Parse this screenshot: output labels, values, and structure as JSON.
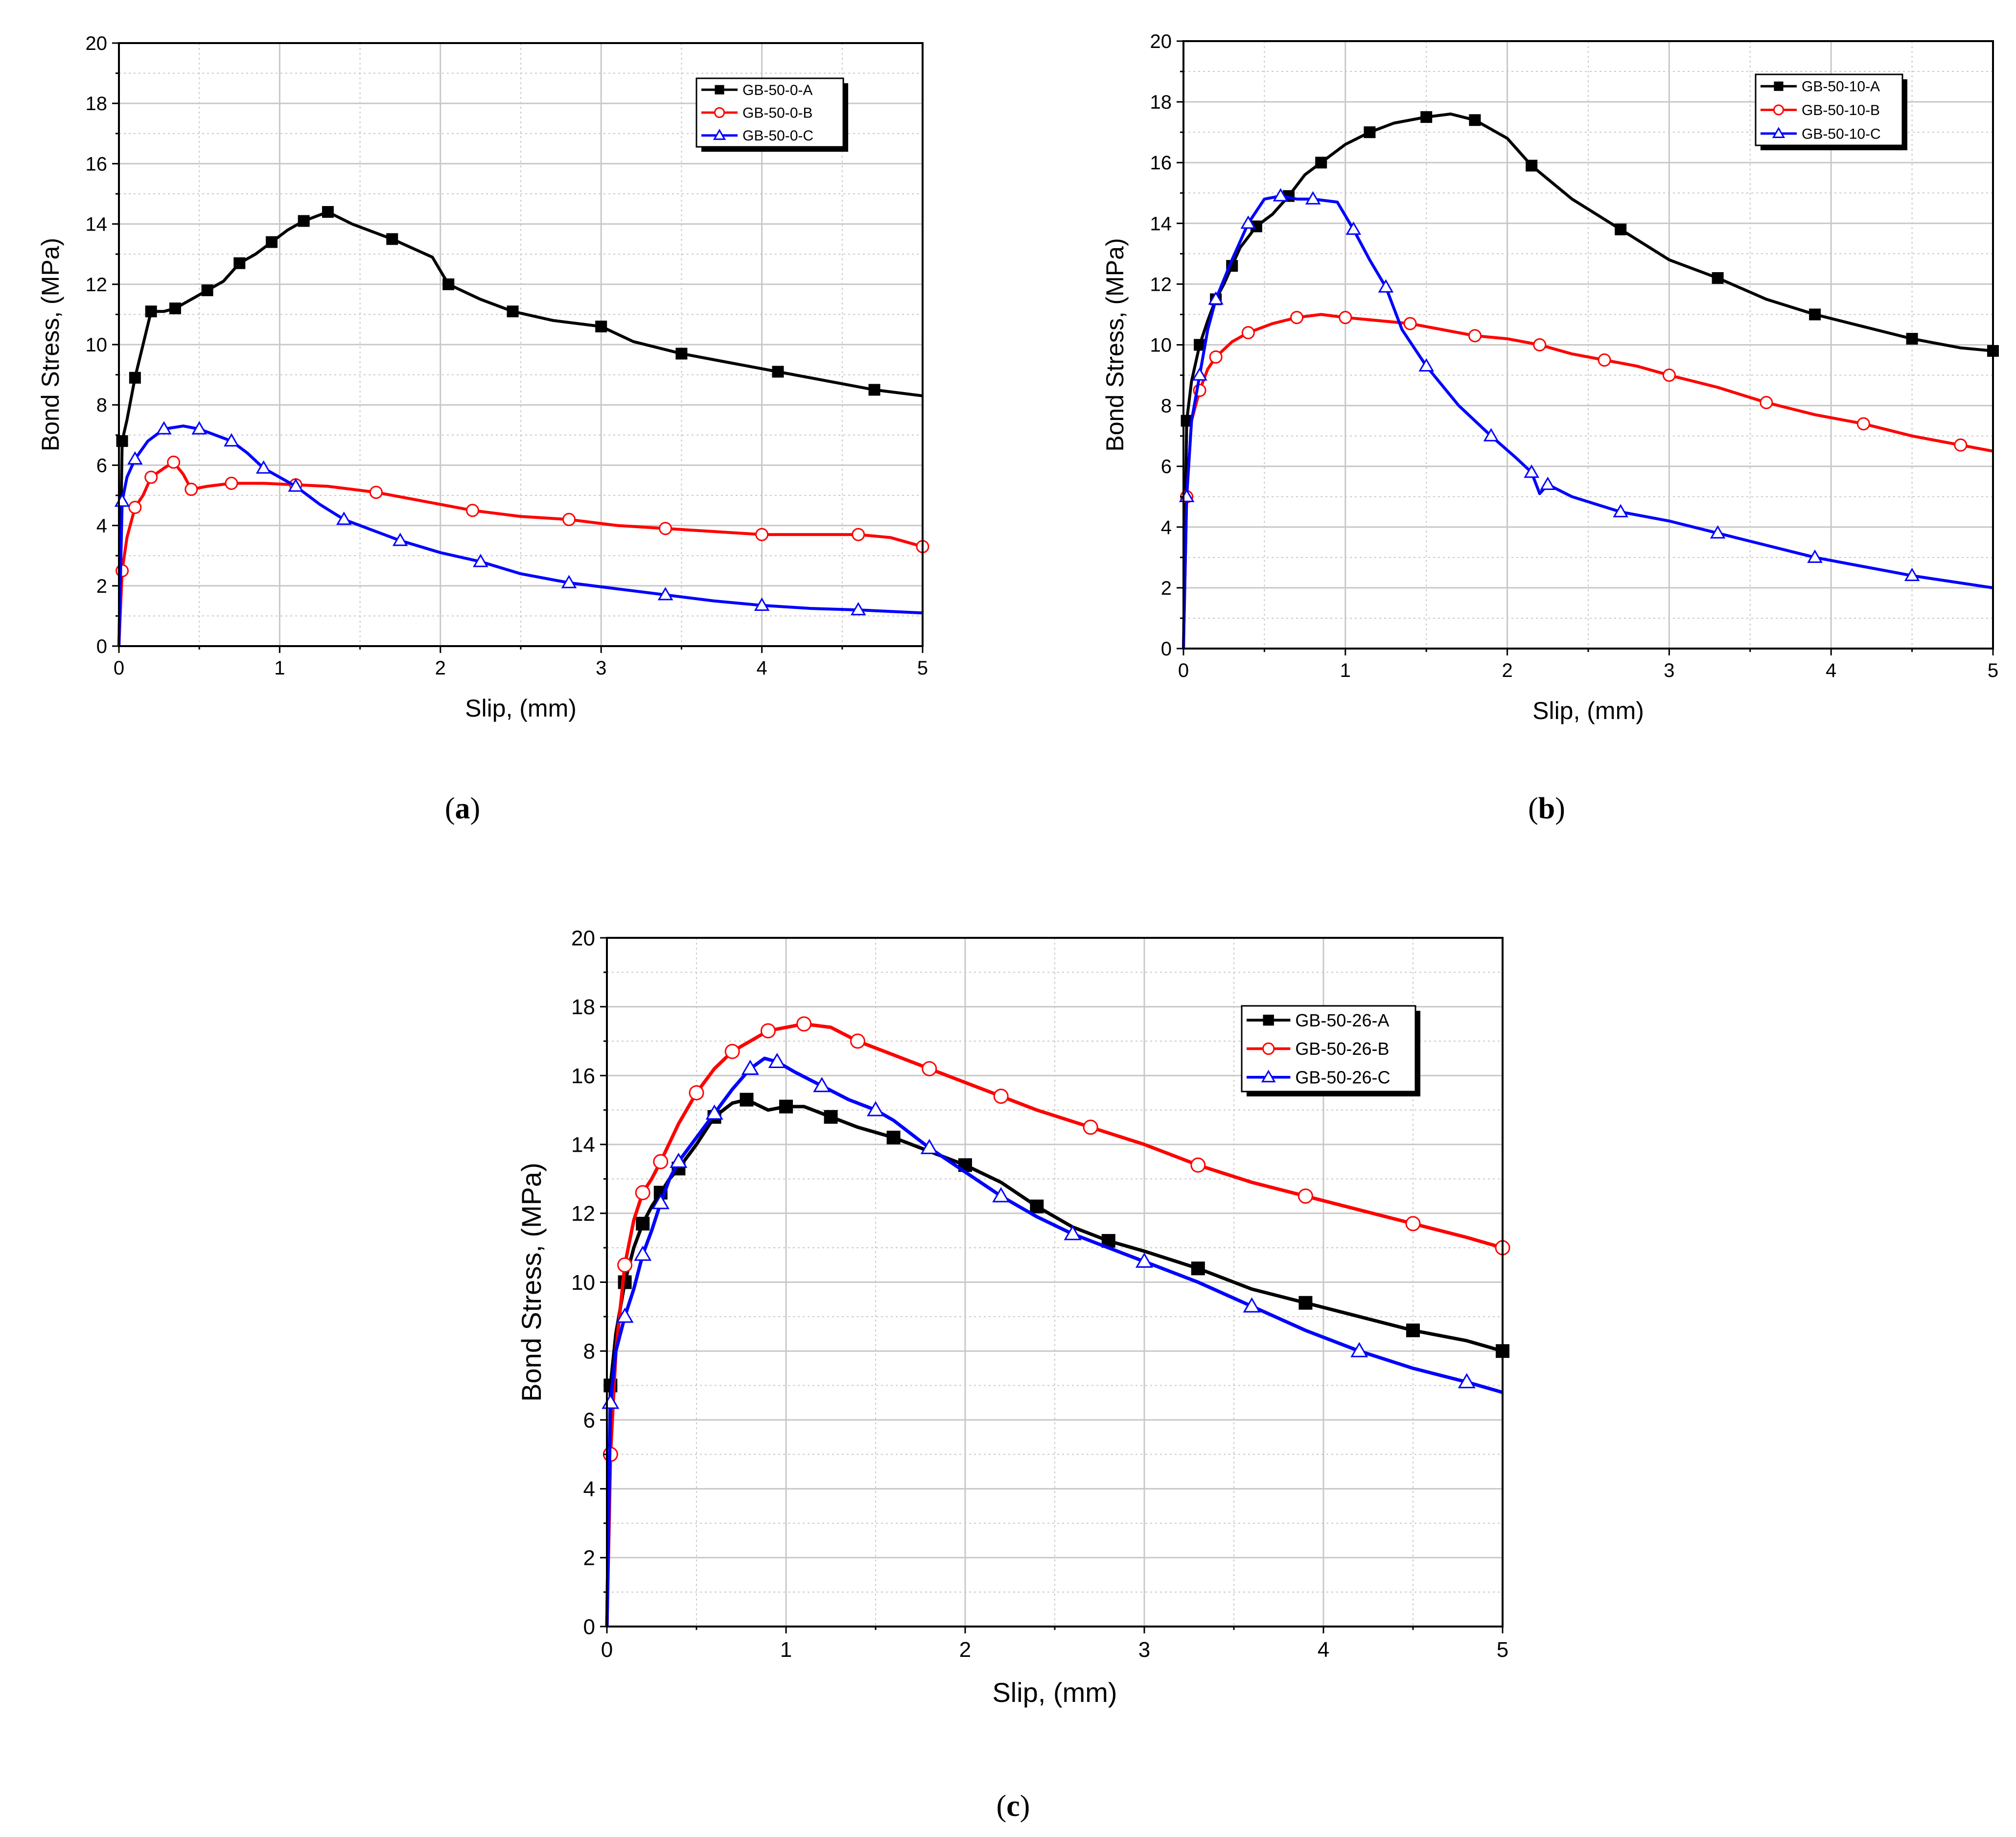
{
  "figure": {
    "panel_labels": [
      [
        "(",
        "a",
        ")"
      ],
      [
        "(",
        "b",
        ")"
      ],
      [
        "(",
        "c",
        ")"
      ]
    ]
  },
  "colors": {
    "series_a": "#000000",
    "series_b": "#ff0000",
    "series_c": "#0000ff",
    "grid": "#c8c8c8",
    "frame": "#000000"
  },
  "chart_data": [
    {
      "type": "line",
      "panel": "a",
      "title": "",
      "xlabel": "Slip, (mm)",
      "ylabel": "Bond Stress, (MPa)",
      "xlim": [
        0,
        5
      ],
      "ylim": [
        0,
        20
      ],
      "xticks": [
        0,
        1,
        2,
        3,
        4,
        5
      ],
      "yticks": [
        0,
        2,
        4,
        6,
        8,
        10,
        12,
        14,
        16,
        18,
        20
      ],
      "grid": true,
      "legend_position": "top-right",
      "series": [
        {
          "name": "GB-50-0-A",
          "marker": "square-filled",
          "color": "#000000",
          "x": [
            0,
            0.02,
            0.05,
            0.1,
            0.15,
            0.2,
            0.28,
            0.35,
            0.45,
            0.55,
            0.65,
            0.75,
            0.85,
            0.95,
            1.05,
            1.15,
            1.25,
            1.3,
            1.45,
            1.7,
            1.95,
            2.05,
            2.25,
            2.45,
            2.7,
            3.0,
            3.2,
            3.5,
            3.8,
            4.1,
            4.4,
            4.7,
            5.0
          ],
          "y": [
            0,
            6.8,
            7.5,
            8.9,
            10.0,
            11.1,
            11.1,
            11.2,
            11.5,
            11.8,
            12.1,
            12.7,
            13.0,
            13.4,
            13.8,
            14.1,
            14.3,
            14.4,
            14.0,
            13.5,
            12.9,
            12.0,
            11.5,
            11.1,
            10.8,
            10.6,
            10.1,
            9.7,
            9.4,
            9.1,
            8.8,
            8.5,
            8.3
          ]
        },
        {
          "name": "GB-50-0-B",
          "marker": "circle-open",
          "color": "#ff0000",
          "x": [
            0,
            0.02,
            0.05,
            0.1,
            0.15,
            0.2,
            0.28,
            0.34,
            0.4,
            0.45,
            0.55,
            0.7,
            0.9,
            1.1,
            1.3,
            1.6,
            1.9,
            2.2,
            2.5,
            2.8,
            3.1,
            3.4,
            3.7,
            4.0,
            4.3,
            4.6,
            4.8,
            5.0
          ],
          "y": [
            0,
            2.5,
            3.6,
            4.6,
            5.0,
            5.6,
            5.9,
            6.1,
            5.7,
            5.2,
            5.3,
            5.4,
            5.4,
            5.35,
            5.3,
            5.1,
            4.8,
            4.5,
            4.3,
            4.2,
            4.0,
            3.9,
            3.8,
            3.7,
            3.7,
            3.7,
            3.6,
            3.3
          ]
        },
        {
          "name": "GB-50-0-C",
          "marker": "triangle-open",
          "color": "#0000ff",
          "x": [
            0,
            0.02,
            0.05,
            0.1,
            0.18,
            0.28,
            0.4,
            0.5,
            0.6,
            0.7,
            0.8,
            0.9,
            1.0,
            1.1,
            1.25,
            1.4,
            1.55,
            1.75,
            2.0,
            2.25,
            2.5,
            2.8,
            3.1,
            3.4,
            3.7,
            4.0,
            4.3,
            4.6,
            5.0
          ],
          "y": [
            0,
            4.8,
            5.6,
            6.2,
            6.8,
            7.2,
            7.3,
            7.2,
            7.0,
            6.8,
            6.4,
            5.9,
            5.6,
            5.3,
            4.7,
            4.2,
            3.9,
            3.5,
            3.1,
            2.8,
            2.4,
            2.1,
            1.9,
            1.7,
            1.5,
            1.35,
            1.25,
            1.2,
            1.1
          ]
        }
      ]
    },
    {
      "type": "line",
      "panel": "b",
      "title": "",
      "xlabel": "Slip, (mm)",
      "ylabel": "Bond Stress, (MPa)",
      "xlim": [
        0,
        5
      ],
      "ylim": [
        0,
        20
      ],
      "xticks": [
        0,
        1,
        2,
        3,
        4,
        5
      ],
      "yticks": [
        0,
        2,
        4,
        6,
        8,
        10,
        12,
        14,
        16,
        18,
        20
      ],
      "grid": true,
      "legend_position": "top-right",
      "series": [
        {
          "name": "GB-50-10-A",
          "marker": "square-filled",
          "color": "#000000",
          "x": [
            0,
            0.02,
            0.05,
            0.1,
            0.15,
            0.2,
            0.25,
            0.3,
            0.35,
            0.45,
            0.55,
            0.65,
            0.75,
            0.85,
            1.0,
            1.15,
            1.3,
            1.5,
            1.65,
            1.8,
            2.0,
            2.15,
            2.4,
            2.7,
            3.0,
            3.3,
            3.6,
            3.9,
            4.2,
            4.5,
            4.8,
            5.0
          ],
          "y": [
            0,
            7.5,
            8.8,
            10.0,
            10.8,
            11.5,
            12.0,
            12.6,
            13.2,
            13.9,
            14.3,
            14.9,
            15.6,
            16.0,
            16.6,
            17.0,
            17.3,
            17.5,
            17.6,
            17.4,
            16.8,
            15.9,
            14.8,
            13.8,
            12.8,
            12.2,
            11.5,
            11.0,
            10.6,
            10.2,
            9.9,
            9.8
          ]
        },
        {
          "name": "GB-50-10-B",
          "marker": "circle-open",
          "color": "#ff0000",
          "x": [
            0,
            0.02,
            0.05,
            0.1,
            0.15,
            0.2,
            0.3,
            0.4,
            0.55,
            0.7,
            0.85,
            1.0,
            1.2,
            1.4,
            1.6,
            1.8,
            2.0,
            2.2,
            2.4,
            2.6,
            2.8,
            3.0,
            3.3,
            3.6,
            3.9,
            4.2,
            4.5,
            4.8,
            5.0
          ],
          "y": [
            0,
            5.0,
            7.5,
            8.5,
            9.2,
            9.6,
            10.1,
            10.4,
            10.7,
            10.9,
            11.0,
            10.9,
            10.8,
            10.7,
            10.5,
            10.3,
            10.2,
            10.0,
            9.7,
            9.5,
            9.3,
            9.0,
            8.6,
            8.1,
            7.7,
            7.4,
            7.0,
            6.7,
            6.5
          ]
        },
        {
          "name": "GB-50-10-C",
          "marker": "triangle-open",
          "color": "#0000ff",
          "x": [
            0,
            0.02,
            0.05,
            0.1,
            0.15,
            0.2,
            0.3,
            0.4,
            0.5,
            0.6,
            0.7,
            0.8,
            0.95,
            1.05,
            1.15,
            1.25,
            1.35,
            1.5,
            1.7,
            1.9,
            2.05,
            2.15,
            2.2,
            2.25,
            2.4,
            2.7,
            3.0,
            3.3,
            3.6,
            3.9,
            4.2,
            4.5,
            5.0
          ],
          "y": [
            0,
            5.0,
            7.5,
            9.0,
            10.5,
            11.5,
            12.8,
            14.0,
            14.8,
            14.9,
            14.8,
            14.8,
            14.7,
            13.8,
            12.8,
            11.9,
            10.5,
            9.3,
            8.0,
            7.0,
            6.3,
            5.8,
            5.1,
            5.4,
            5.0,
            4.5,
            4.2,
            3.8,
            3.4,
            3.0,
            2.7,
            2.4,
            2.0
          ]
        }
      ]
    },
    {
      "type": "line",
      "panel": "c",
      "title": "",
      "xlabel": "Slip, (mm)",
      "ylabel": "Bond Stress, (MPa)",
      "xlim": [
        0,
        5
      ],
      "ylim": [
        0,
        20
      ],
      "xticks": [
        0,
        1,
        2,
        3,
        4,
        5
      ],
      "yticks": [
        0,
        2,
        4,
        6,
        8,
        10,
        12,
        14,
        16,
        18,
        20
      ],
      "grid": true,
      "legend_position": "top-right",
      "series": [
        {
          "name": "GB-50-26-A",
          "marker": "square-filled",
          "color": "#000000",
          "x": [
            0,
            0.02,
            0.05,
            0.1,
            0.15,
            0.2,
            0.25,
            0.3,
            0.35,
            0.4,
            0.5,
            0.6,
            0.7,
            0.78,
            0.9,
            1.0,
            1.1,
            1.25,
            1.4,
            1.6,
            1.8,
            2.0,
            2.2,
            2.4,
            2.6,
            2.8,
            3.0,
            3.3,
            3.6,
            3.9,
            4.2,
            4.5,
            4.8,
            5.0
          ],
          "y": [
            0,
            7.0,
            8.5,
            10.0,
            11.0,
            11.7,
            12.2,
            12.6,
            13.0,
            13.3,
            14.0,
            14.8,
            15.2,
            15.3,
            15.0,
            15.1,
            15.1,
            14.8,
            14.5,
            14.2,
            13.8,
            13.4,
            12.9,
            12.2,
            11.6,
            11.2,
            10.9,
            10.4,
            9.8,
            9.4,
            9.0,
            8.6,
            8.3,
            8.0
          ]
        },
        {
          "name": "GB-50-26-B",
          "marker": "circle-open",
          "color": "#ff0000",
          "x": [
            0,
            0.02,
            0.05,
            0.1,
            0.15,
            0.2,
            0.25,
            0.3,
            0.4,
            0.5,
            0.6,
            0.7,
            0.8,
            0.9,
            1.0,
            1.1,
            1.25,
            1.4,
            1.6,
            1.8,
            2.0,
            2.2,
            2.4,
            2.7,
            3.0,
            3.3,
            3.6,
            3.9,
            4.2,
            4.5,
            4.8,
            5.0
          ],
          "y": [
            0,
            5.0,
            8.0,
            10.5,
            11.8,
            12.6,
            13.0,
            13.5,
            14.6,
            15.5,
            16.2,
            16.7,
            17.0,
            17.3,
            17.4,
            17.5,
            17.4,
            17.0,
            16.6,
            16.2,
            15.8,
            15.4,
            15.0,
            14.5,
            14.0,
            13.4,
            12.9,
            12.5,
            12.1,
            11.7,
            11.3,
            11.0
          ]
        },
        {
          "name": "GB-50-26-C",
          "marker": "triangle-open",
          "color": "#0000ff",
          "x": [
            0,
            0.02,
            0.05,
            0.1,
            0.15,
            0.2,
            0.25,
            0.3,
            0.35,
            0.4,
            0.5,
            0.6,
            0.7,
            0.8,
            0.88,
            0.95,
            1.05,
            1.2,
            1.35,
            1.5,
            1.6,
            1.8,
            2.0,
            2.2,
            2.4,
            2.6,
            2.8,
            3.0,
            3.3,
            3.6,
            3.9,
            4.2,
            4.5,
            4.8,
            5.0
          ],
          "y": [
            0,
            6.5,
            8.0,
            9.0,
            9.8,
            10.8,
            11.5,
            12.3,
            13.0,
            13.5,
            14.2,
            14.9,
            15.6,
            16.2,
            16.5,
            16.4,
            16.1,
            15.7,
            15.3,
            15.0,
            14.7,
            13.9,
            13.2,
            12.5,
            11.9,
            11.4,
            11.0,
            10.6,
            10.0,
            9.3,
            8.6,
            8.0,
            7.5,
            7.1,
            6.8
          ]
        }
      ]
    }
  ]
}
